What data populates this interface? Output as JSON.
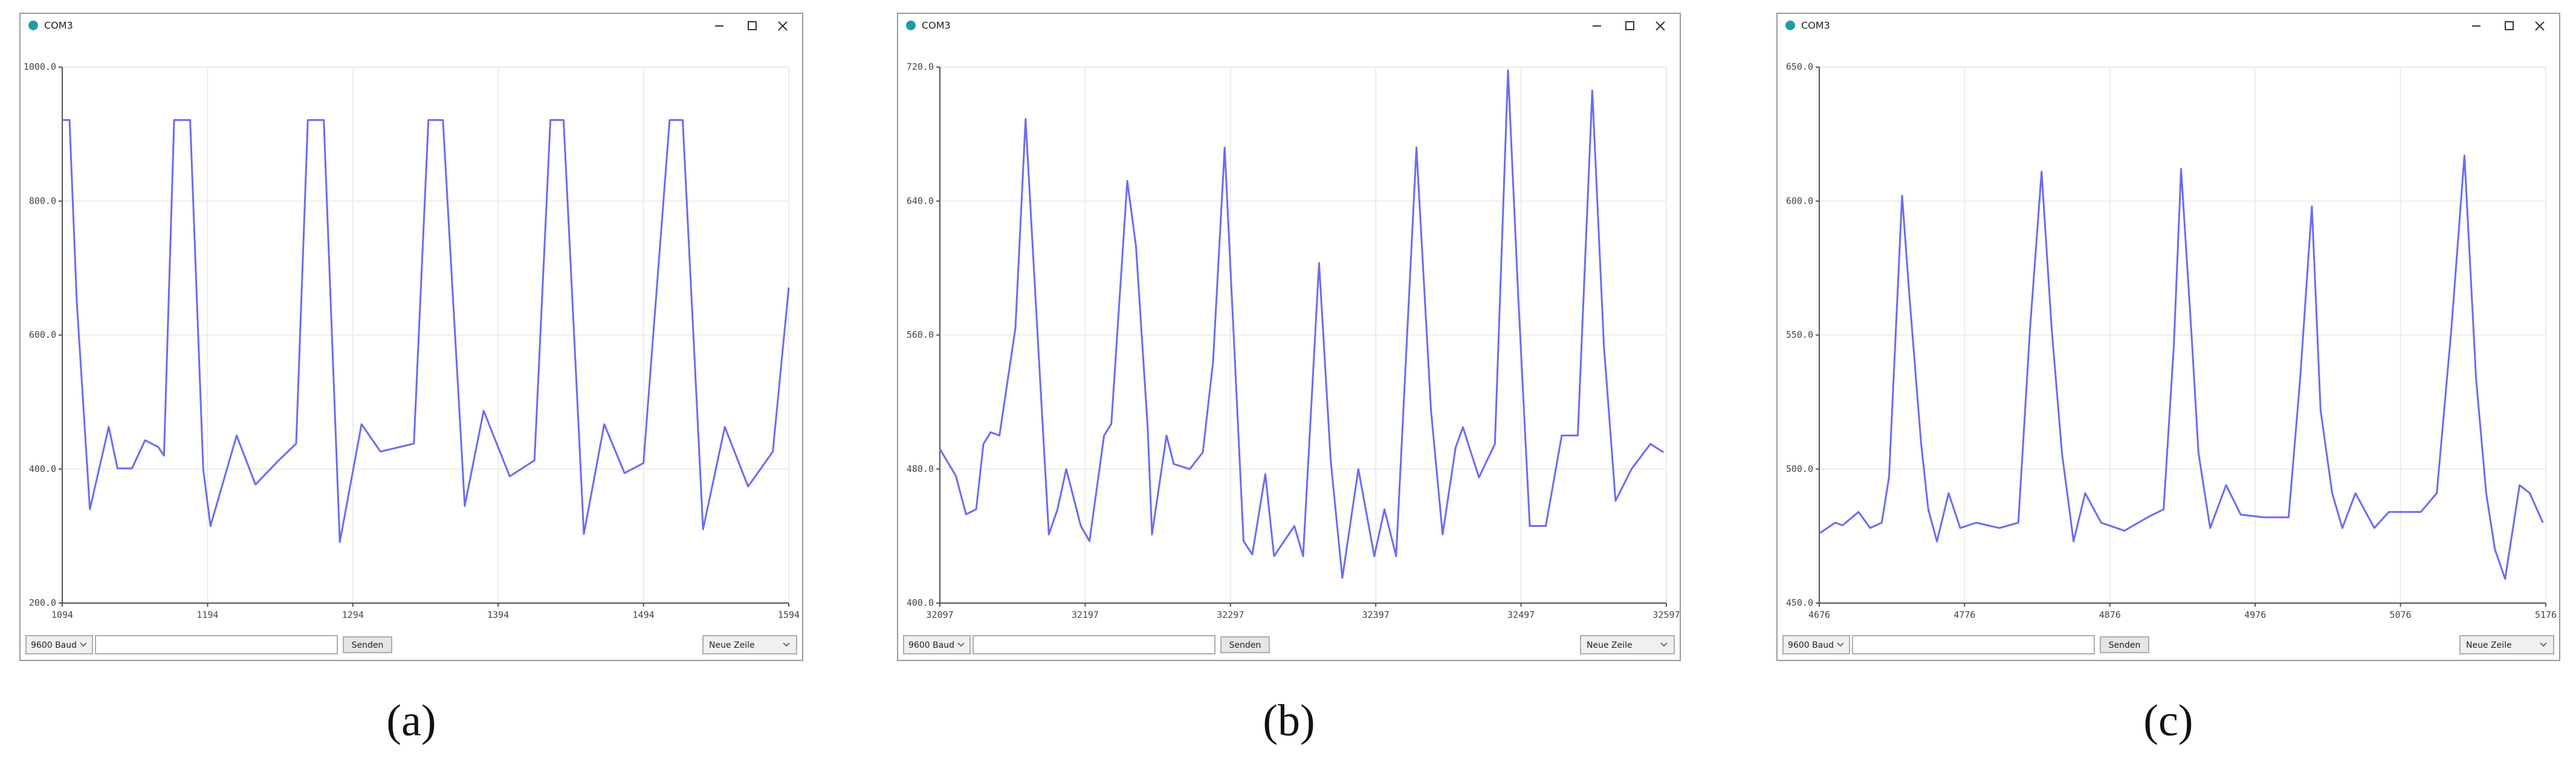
{
  "panels": [
    {
      "caption": "(a)",
      "window_title": "COM3",
      "baud": "9600 Baud",
      "send_button": "Senden",
      "line_ending": "Neue Zeile",
      "chart_data": {
        "type": "line",
        "x": [
          1094,
          1099,
          1104,
          1113,
          1126,
          1132,
          1142,
          1151,
          1160,
          1164,
          1171,
          1182,
          1191,
          1196,
          1214,
          1227,
          1243,
          1255,
          1263,
          1274,
          1285,
          1300,
          1313,
          1336,
          1346,
          1356,
          1371,
          1384,
          1402,
          1419,
          1430,
          1439,
          1453,
          1467,
          1481,
          1494,
          1512,
          1521,
          1535,
          1550,
          1566,
          1583,
          1594
        ],
        "series": [
          {
            "color": "#6b6bf2",
            "values": [
              921,
              921,
              650,
              340,
              463,
              401,
              401,
              443,
              433,
              420,
              921,
              921,
              400,
              315,
              450,
              377,
              413,
              438,
              921,
              921,
              291,
              467,
              426,
              438,
              921,
              921,
              345,
              487,
              389,
              413,
              921,
              921,
              303,
              467,
              394,
              409,
              921,
              921,
              310,
              463,
              374,
              426,
              671
            ]
          }
        ],
        "xlim": [
          1094,
          1594
        ],
        "xticks": [
          1094,
          1194,
          1294,
          1394,
          1494,
          1594
        ],
        "ylim": [
          200,
          1000
        ],
        "yticks": [
          {
            "value": 200,
            "label": "200.0"
          },
          {
            "value": 400,
            "label": "400.0"
          },
          {
            "value": 600,
            "label": "600.0"
          },
          {
            "value": 800,
            "label": "800.0"
          },
          {
            "value": 1000,
            "label": "1000.0"
          }
        ],
        "grid": true
      }
    },
    {
      "caption": "(b)",
      "window_title": "COM3",
      "baud": "9600 Baud",
      "send_button": "Senden",
      "line_ending": "Neue Zeile",
      "chart_data": {
        "type": "line",
        "x": [
          32097,
          32108,
          32115,
          32122,
          32127,
          32132,
          32138,
          32149,
          32156,
          32164,
          32172,
          32178,
          32184,
          32194,
          32200,
          32210,
          32215,
          32226,
          32232,
          32240,
          32243,
          32253,
          32258,
          32269,
          32278,
          32285,
          32293,
          32299,
          32306,
          32312,
          32321,
          32327,
          32334,
          32341,
          32347,
          32358,
          32366,
          32374,
          32385,
          32396,
          32403,
          32411,
          32425,
          32435,
          32443,
          32452,
          32457,
          32468,
          32479,
          32488,
          32495,
          32503,
          32514,
          32525,
          32536,
          32546,
          32554,
          32562,
          32573,
          32586,
          32595
        ],
        "series": [
          {
            "color": "#6b6bf2",
            "values": [
              492,
              476,
              453,
              456,
              495,
              502,
              500,
              564,
              689,
              564,
              441,
              456,
              480,
              446,
              437,
              500,
              507,
              652,
              613,
              505,
              441,
              500,
              483,
              480,
              490,
              544,
              672,
              564,
              437,
              429,
              477,
              428,
              437,
              446,
              428,
              603,
              485,
              415,
              480,
              428,
              456,
              428,
              672,
              515,
              441,
              493,
              505,
              475,
              495,
              718,
              584,
              446,
              446,
              500,
              500,
              706,
              554,
              461,
              480,
              495,
              490
            ]
          }
        ],
        "xlim": [
          32097,
          32597
        ],
        "xticks": [
          32097,
          32197,
          32297,
          32397,
          32497,
          32597
        ],
        "ylim": [
          400,
          720
        ],
        "yticks": [
          {
            "value": 400,
            "label": "400.0"
          },
          {
            "value": 480,
            "label": "480.0"
          },
          {
            "value": 560,
            "label": "560.0"
          },
          {
            "value": 640,
            "label": "640.0"
          },
          {
            "value": 720,
            "label": "720.0"
          }
        ],
        "grid": true
      }
    },
    {
      "caption": "(c)",
      "window_title": "COM3",
      "baud": "9600 Baud",
      "send_button": "Senden",
      "line_ending": "Neue Zeile",
      "chart_data": {
        "type": "line",
        "x": [
          4676,
          4687,
          4692,
          4703,
          4711,
          4719,
          4724,
          4733,
          4738,
          4746,
          4751,
          4757,
          4765,
          4773,
          4784,
          4800,
          4813,
          4821,
          4829,
          4836,
          4843,
          4851,
          4859,
          4870,
          4886,
          4902,
          4913,
          4920,
          4925,
          4932,
          4937,
          4945,
          4956,
          4966,
          4982,
          4999,
          5007,
          5015,
          5021,
          5029,
          5036,
          5045,
          5058,
          5068,
          5090,
          5101,
          5111,
          5120,
          5128,
          5135,
          5141,
          5148,
          5158,
          5165,
          5174
        ],
        "series": [
          {
            "color": "#6b6bf2",
            "values": [
              476,
              480,
              479,
              484,
              478,
              480,
              497,
              602,
              565,
              510,
              485,
              473,
              491,
              478,
              480,
              478,
              480,
              552,
              611,
              552,
              506,
              473,
              491,
              480,
              477,
              482,
              485,
              546,
              612,
              552,
              506,
              478,
              494,
              483,
              482,
              482,
              534,
              598,
              522,
              491,
              478,
              491,
              478,
              484,
              484,
              491,
              552,
              617,
              534,
              491,
              470,
              459,
              494,
              491,
              480
            ]
          }
        ],
        "xlim": [
          4676,
          5176
        ],
        "xticks": [
          4676,
          4776,
          4876,
          4976,
          5076,
          5176
        ],
        "ylim": [
          450,
          650
        ],
        "yticks": [
          {
            "value": 450,
            "label": "450.0"
          },
          {
            "value": 500,
            "label": "500.0"
          },
          {
            "value": 550,
            "label": "550.0"
          },
          {
            "value": 600,
            "label": "600.0"
          },
          {
            "value": 650,
            "label": "650.0"
          }
        ],
        "grid": true
      }
    }
  ]
}
